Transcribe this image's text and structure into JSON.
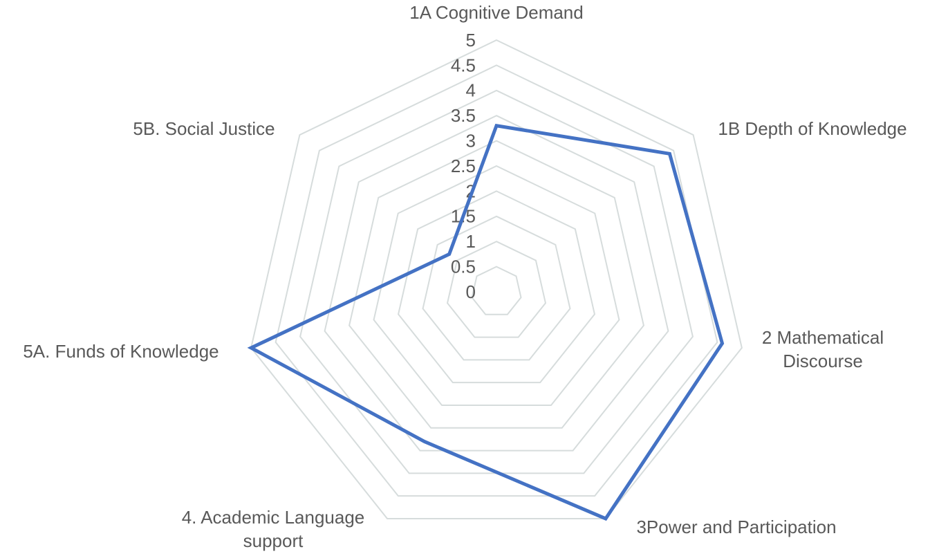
{
  "chart_data": {
    "type": "radar",
    "categories": [
      "1A Cognitive Demand",
      "1B Depth of Knowledge",
      "2 Mathematical Discourse",
      "3Power and Participation",
      "4. Academic Language support",
      "5A. Funds of Knowledge",
      "5B. Social Justice"
    ],
    "values": [
      3.3,
      4.4,
      4.6,
      5,
      3.3,
      5,
      1.2
    ],
    "color": "#4472c4",
    "ylim": [
      0,
      5
    ],
    "yticks": [
      0,
      0.5,
      1,
      1.5,
      2,
      2.5,
      3,
      3.5,
      4,
      4.5,
      5
    ],
    "grid": true
  }
}
